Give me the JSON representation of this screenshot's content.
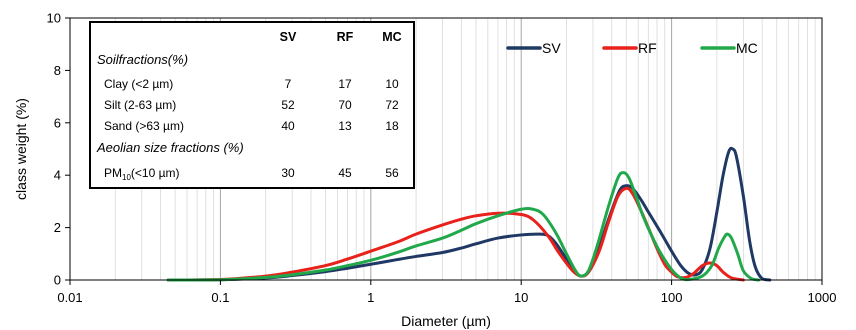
{
  "chart_data": {
    "type": "line",
    "title": "",
    "xlabel": "Diameter (µm)",
    "ylabel": "class weight (%)",
    "xscale": "log",
    "xlim": [
      0.01,
      1000
    ],
    "ylim": [
      0,
      10
    ],
    "x_ticks": [
      "0.01",
      "0.1",
      "1",
      "10",
      "100",
      "1000"
    ],
    "y_ticks": [
      "0",
      "2",
      "4",
      "6",
      "8",
      "10"
    ],
    "grid": "minor vertical log gridlines",
    "legend_position": "top-right",
    "series": [
      {
        "name": "SV",
        "color": "#1f3864",
        "points": [
          [
            0.045,
            0
          ],
          [
            0.1,
            0.01
          ],
          [
            0.2,
            0.08
          ],
          [
            0.3,
            0.17
          ],
          [
            0.5,
            0.32
          ],
          [
            0.7,
            0.45
          ],
          [
            1,
            0.6
          ],
          [
            1.5,
            0.78
          ],
          [
            2,
            0.9
          ],
          [
            3,
            1.05
          ],
          [
            4,
            1.22
          ],
          [
            5,
            1.38
          ],
          [
            7,
            1.6
          ],
          [
            10,
            1.72
          ],
          [
            13,
            1.75
          ],
          [
            15,
            1.7
          ],
          [
            17,
            1.4
          ],
          [
            20,
            0.8
          ],
          [
            23,
            0.3
          ],
          [
            25,
            0.15
          ],
          [
            28,
            0.3
          ],
          [
            32,
            1.0
          ],
          [
            38,
            2.3
          ],
          [
            45,
            3.4
          ],
          [
            50,
            3.6
          ],
          [
            55,
            3.5
          ],
          [
            62,
            3.1
          ],
          [
            70,
            2.6
          ],
          [
            85,
            1.8
          ],
          [
            100,
            1.1
          ],
          [
            115,
            0.55
          ],
          [
            130,
            0.25
          ],
          [
            145,
            0.2
          ],
          [
            160,
            0.4
          ],
          [
            180,
            1.2
          ],
          [
            200,
            2.6
          ],
          [
            220,
            4.0
          ],
          [
            240,
            4.9
          ],
          [
            255,
            5.0
          ],
          [
            270,
            4.7
          ],
          [
            300,
            3.2
          ],
          [
            330,
            1.5
          ],
          [
            360,
            0.5
          ],
          [
            400,
            0.05
          ],
          [
            450,
            0
          ]
        ]
      },
      {
        "name": "RF",
        "color": "#e8211b",
        "points": [
          [
            0.045,
            0
          ],
          [
            0.1,
            0.02
          ],
          [
            0.2,
            0.15
          ],
          [
            0.3,
            0.3
          ],
          [
            0.5,
            0.55
          ],
          [
            0.7,
            0.8
          ],
          [
            1,
            1.1
          ],
          [
            1.5,
            1.45
          ],
          [
            2,
            1.75
          ],
          [
            3,
            2.1
          ],
          [
            4,
            2.32
          ],
          [
            5,
            2.45
          ],
          [
            7,
            2.55
          ],
          [
            10,
            2.5
          ],
          [
            12,
            2.3
          ],
          [
            15,
            1.7
          ],
          [
            18,
            1.0
          ],
          [
            22,
            0.35
          ],
          [
            25,
            0.15
          ],
          [
            28,
            0.3
          ],
          [
            33,
            1.1
          ],
          [
            38,
            2.2
          ],
          [
            44,
            3.2
          ],
          [
            50,
            3.5
          ],
          [
            55,
            3.3
          ],
          [
            62,
            2.7
          ],
          [
            70,
            2.0
          ],
          [
            80,
            1.2
          ],
          [
            90,
            0.6
          ],
          [
            100,
            0.3
          ],
          [
            110,
            0.12
          ],
          [
            125,
            0.1
          ],
          [
            140,
            0.25
          ],
          [
            160,
            0.55
          ],
          [
            180,
            0.65
          ],
          [
            200,
            0.55
          ],
          [
            220,
            0.3
          ],
          [
            250,
            0.08
          ],
          [
            300,
            0
          ]
        ]
      },
      {
        "name": "MC",
        "color": "#21a84a",
        "points": [
          [
            0.045,
            0
          ],
          [
            0.1,
            0.01
          ],
          [
            0.2,
            0.1
          ],
          [
            0.3,
            0.2
          ],
          [
            0.5,
            0.38
          ],
          [
            0.7,
            0.55
          ],
          [
            1,
            0.75
          ],
          [
            1.5,
            1.05
          ],
          [
            2,
            1.3
          ],
          [
            3,
            1.6
          ],
          [
            4,
            1.9
          ],
          [
            5,
            2.15
          ],
          [
            7,
            2.45
          ],
          [
            10,
            2.7
          ],
          [
            12,
            2.7
          ],
          [
            14,
            2.5
          ],
          [
            17,
            1.8
          ],
          [
            20,
            1.0
          ],
          [
            23,
            0.35
          ],
          [
            25,
            0.15
          ],
          [
            28,
            0.35
          ],
          [
            32,
            1.3
          ],
          [
            38,
            2.8
          ],
          [
            44,
            3.9
          ],
          [
            48,
            4.1
          ],
          [
            52,
            3.9
          ],
          [
            58,
            3.2
          ],
          [
            65,
            2.4
          ],
          [
            75,
            1.6
          ],
          [
            85,
            1.0
          ],
          [
            100,
            0.4
          ],
          [
            115,
            0.08
          ],
          [
            130,
            0.02
          ],
          [
            160,
            0.15
          ],
          [
            185,
            0.55
          ],
          [
            205,
            1.2
          ],
          [
            225,
            1.65
          ],
          [
            235,
            1.75
          ],
          [
            250,
            1.6
          ],
          [
            275,
            1.0
          ],
          [
            300,
            0.35
          ],
          [
            340,
            0.05
          ],
          [
            380,
            0
          ]
        ]
      }
    ],
    "inset_table": {
      "columns": [
        "SV",
        "RF",
        "MC"
      ],
      "section1_title": "Soilfractions(%)",
      "rows1": [
        {
          "label": "Clay (<2 µm)",
          "values": [
            "7",
            "17",
            "10"
          ]
        },
        {
          "label": "Silt (2-63 µm)",
          "values": [
            "52",
            "70",
            "72"
          ]
        },
        {
          "label": "Sand (>63 µm)",
          "values": [
            "40",
            "13",
            "18"
          ]
        }
      ],
      "section2_title": "Aeolian size fractions (%)",
      "pm_label_main": "PM",
      "pm_label_sub": "10",
      "pm_label_rest": "(<10 µm)",
      "pm_values": [
        "30",
        "45",
        "56"
      ]
    }
  }
}
